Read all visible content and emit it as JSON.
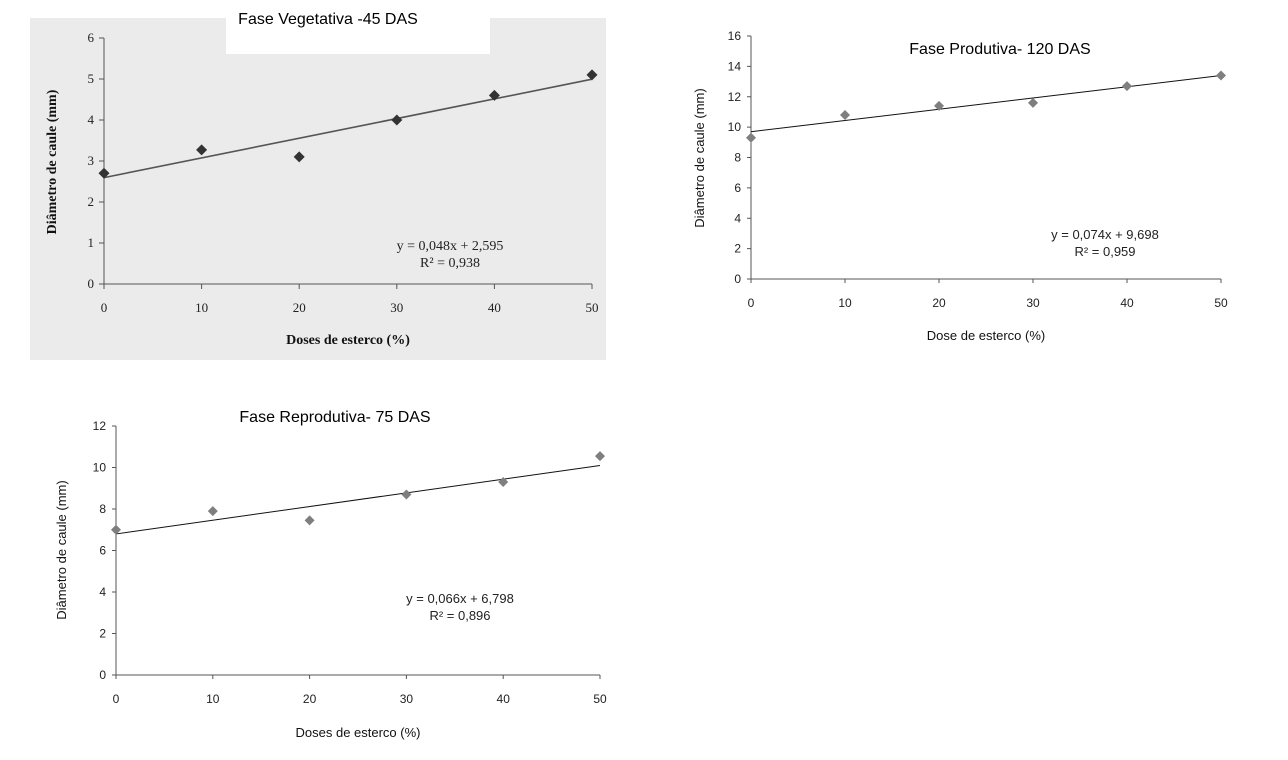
{
  "chart_data": [
    {
      "type": "scatter",
      "title": "Fase Vegetativa -45 DAS",
      "xlabel": "Doses de esterco (%)",
      "ylabel": "Diâmetro de caule (mm)",
      "x": [
        0,
        10,
        20,
        30,
        40,
        50
      ],
      "y": [
        2.7,
        3.27,
        3.1,
        4.0,
        4.6,
        5.1
      ],
      "xlim": [
        0,
        50
      ],
      "ylim": [
        0,
        6
      ],
      "xticks": [
        "0",
        "10",
        "20",
        "30",
        "40",
        "50"
      ],
      "yticks": [
        "0",
        "1",
        "2",
        "3",
        "4",
        "5",
        "6"
      ],
      "trendline": {
        "slope": 0.048,
        "intercept": 2.595
      },
      "equation": "y = 0,048x + 2,595",
      "r2": "R² = 0,938",
      "background": "#ebebeb",
      "marker_color": "#333333"
    },
    {
      "type": "scatter",
      "title": "Fase Produtiva- 120 DAS",
      "xlabel": "Dose de esterco (%)",
      "ylabel": "Diâmetro de caule (mm)",
      "x": [
        0,
        10,
        20,
        30,
        40,
        50
      ],
      "y": [
        9.3,
        10.8,
        11.4,
        11.6,
        12.7,
        13.4
      ],
      "xlim": [
        0,
        50
      ],
      "ylim": [
        0,
        16
      ],
      "xticks": [
        "0",
        "10",
        "20",
        "30",
        "40",
        "50"
      ],
      "yticks": [
        "0",
        "2",
        "4",
        "6",
        "8",
        "10",
        "12",
        "14",
        "16"
      ],
      "trendline": {
        "slope": 0.074,
        "intercept": 9.698
      },
      "equation": "y = 0,074x + 9,698",
      "r2": "R² = 0,959",
      "background": "#ffffff",
      "marker_color": "#7f7f7f"
    },
    {
      "type": "scatter",
      "title": "Fase Reprodutiva- 75 DAS",
      "xlabel": "Doses de esterco (%)",
      "ylabel": "Diâmetro de caule (mm)",
      "x": [
        0,
        10,
        20,
        30,
        40,
        50
      ],
      "y": [
        7.0,
        7.9,
        7.45,
        8.7,
        9.3,
        10.55
      ],
      "xlim": [
        0,
        50
      ],
      "ylim": [
        0,
        12
      ],
      "xticks": [
        "0",
        "10",
        "20",
        "30",
        "40",
        "50"
      ],
      "yticks": [
        "0",
        "2",
        "4",
        "6",
        "8",
        "10",
        "12"
      ],
      "trendline": {
        "slope": 0.066,
        "intercept": 6.798
      },
      "equation": "y = 0,066x + 6,798",
      "r2": "R² = 0,896",
      "background": "#ffffff",
      "marker_color": "#7f7f7f"
    }
  ]
}
